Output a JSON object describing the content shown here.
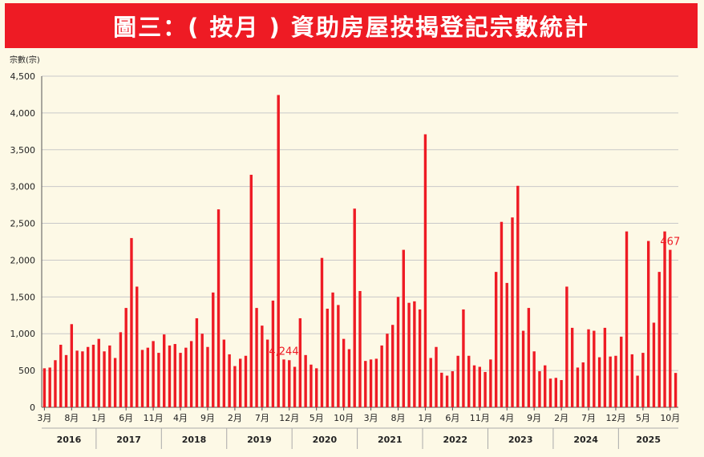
{
  "title": "圖三：( 按月 ) 資助房屋按揭登記宗數統計",
  "chart_data": {
    "type": "bar",
    "ylabel": "宗數(宗)",
    "ylim": [
      0,
      4500
    ],
    "yticks": [
      "0",
      "500",
      "1,000",
      "1,500",
      "2,000",
      "2,500",
      "3,000",
      "3,500",
      "4,000",
      "4,500"
    ],
    "grid": true,
    "bar_color": "#ee1b24",
    "x_tick_labels": [
      "3月",
      "8月",
      "1月",
      "6月",
      "11月",
      "4月",
      "9月",
      "2月",
      "7月",
      "12月",
      "5月",
      "10月",
      "3月",
      "8月",
      "1月",
      "6月",
      "11月",
      "4月",
      "9月",
      "2月",
      "7月",
      "12月",
      "5月",
      "10月"
    ],
    "years": [
      "2016",
      "2017",
      "2018",
      "2019",
      "2020",
      "2021",
      "2022",
      "2023",
      "2024",
      "2025"
    ],
    "annotations": [
      {
        "label": "4,244",
        "index": 44
      },
      {
        "label": "467",
        "index": 115
      }
    ],
    "values": [
      530,
      540,
      640,
      850,
      710,
      1130,
      770,
      760,
      820,
      850,
      930,
      760,
      840,
      670,
      1020,
      1350,
      2300,
      1640,
      780,
      810,
      900,
      740,
      990,
      840,
      860,
      740,
      810,
      900,
      1210,
      1000,
      820,
      1560,
      2690,
      920,
      720,
      560,
      660,
      700,
      3160,
      1350,
      1110,
      920,
      1450,
      4244,
      650,
      640,
      550,
      1210,
      710,
      580,
      530,
      2030,
      1340,
      1560,
      1390,
      930,
      790,
      2700,
      1580,
      630,
      650,
      660,
      840,
      1000,
      1120,
      1500,
      2140,
      1420,
      1440,
      1330,
      3710,
      670,
      820,
      470,
      430,
      490,
      700,
      1330,
      700,
      570,
      550,
      480,
      650,
      1840,
      2520,
      1690,
      2580,
      3010,
      1040,
      1350,
      760,
      490,
      570,
      390,
      400,
      370,
      1640,
      1080,
      540,
      610,
      1060,
      1040,
      680,
      1080,
      690,
      700,
      960,
      2390,
      720,
      430,
      740,
      2260,
      1150,
      1840,
      2390,
      2140,
      467
    ]
  }
}
